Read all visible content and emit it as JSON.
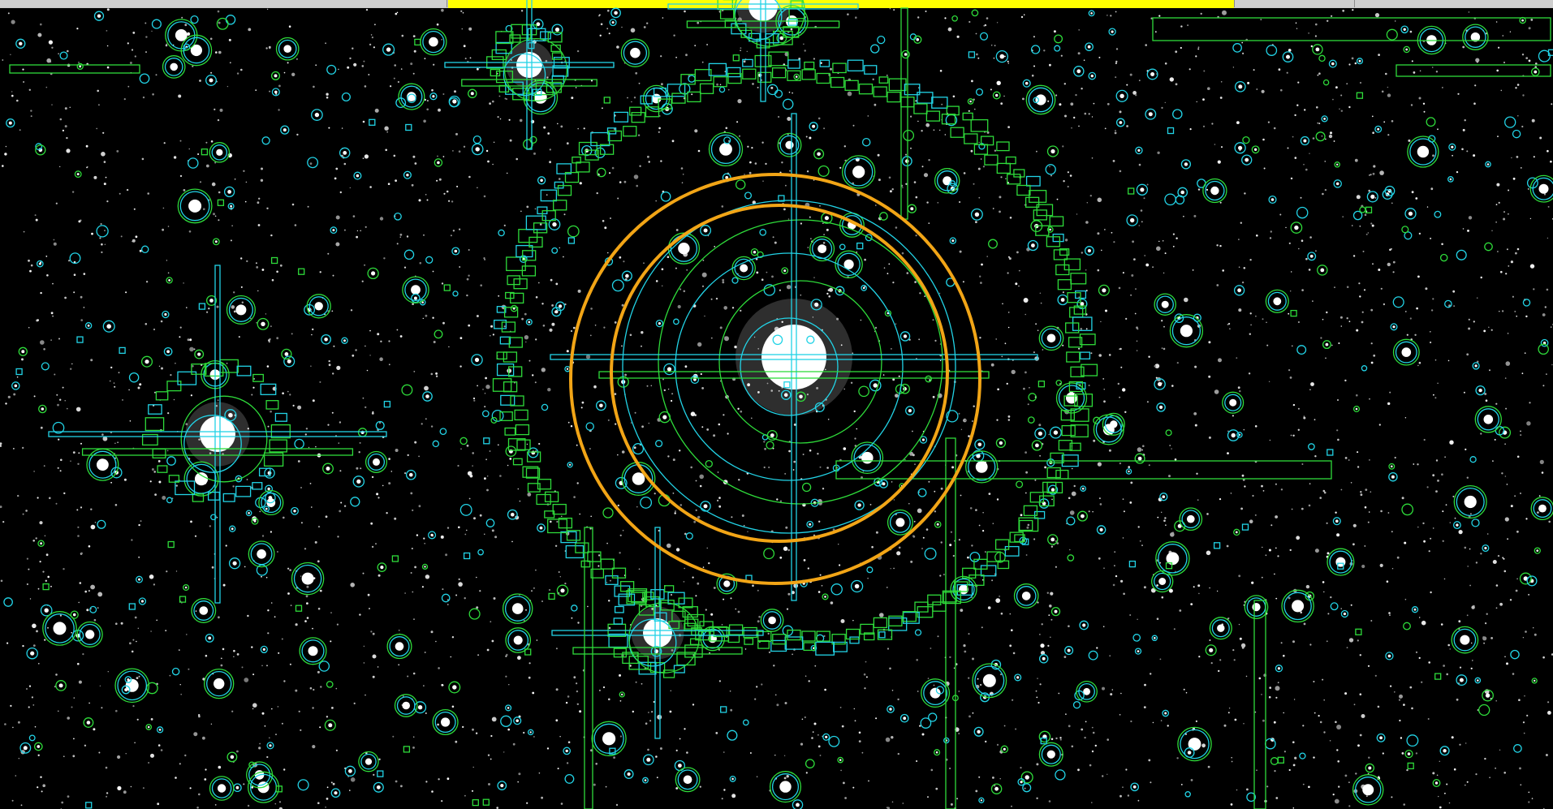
{
  "image": {
    "kind": "astronomical field with source-detection region overlays",
    "colors": {
      "background": "#000000",
      "star": "#ffffff",
      "overlay_cyan": "#22d3e6",
      "overlay_green": "#2edb3a",
      "bright_star_ring": "#f2a516",
      "top_highlight": "#ffff00"
    },
    "overlay_shapes": [
      "circle-region",
      "box-region",
      "diffraction-spike-box",
      "ring-of-boxes"
    ]
  }
}
